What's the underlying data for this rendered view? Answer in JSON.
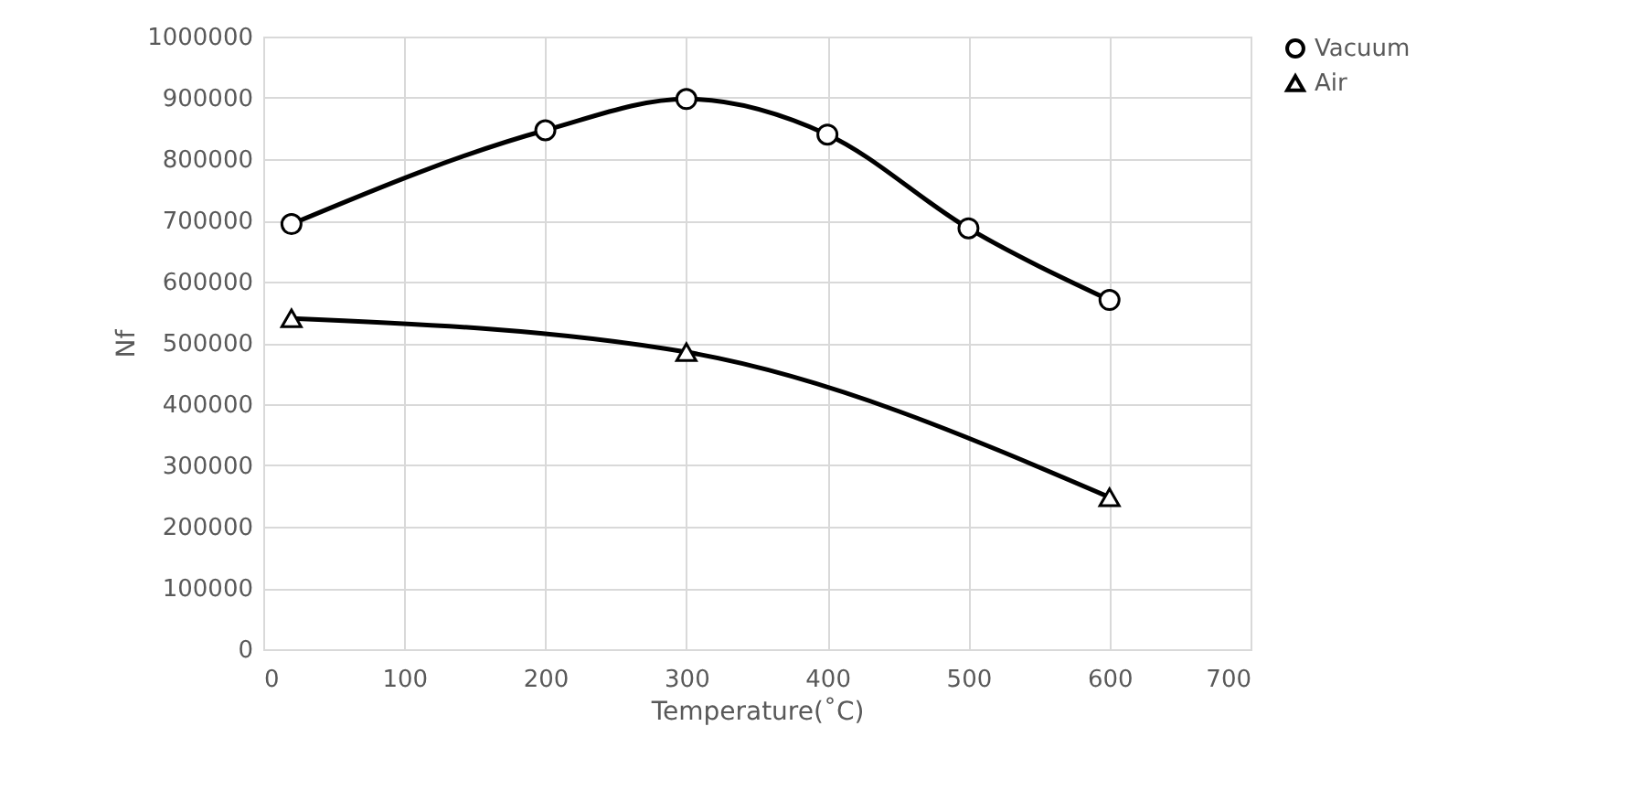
{
  "chart_data": {
    "type": "line",
    "xlabel": "Temperature(˚C)",
    "ylabel": "Nf",
    "xlim": [
      0,
      700
    ],
    "xticks": [
      0,
      100,
      200,
      300,
      400,
      500,
      600,
      700
    ],
    "ylim": [
      0,
      1000000
    ],
    "yticks": [
      0,
      100000,
      200000,
      300000,
      400000,
      500000,
      600000,
      700000,
      800000,
      900000,
      1000000
    ],
    "grid": true,
    "legend": "right",
    "line_style": "solid",
    "series": [
      {
        "name": "Vacuum",
        "color": "#000000",
        "marker": "circle",
        "x": [
          20,
          200,
          300,
          400,
          500,
          600
        ],
        "values": [
          694000,
          847000,
          898000,
          840000,
          687000,
          570000
        ]
      },
      {
        "name": "Air",
        "color": "#000000",
        "marker": "triangle",
        "x": [
          20,
          300,
          600
        ],
        "values": [
          540000,
          485000,
          248000
        ]
      }
    ]
  }
}
